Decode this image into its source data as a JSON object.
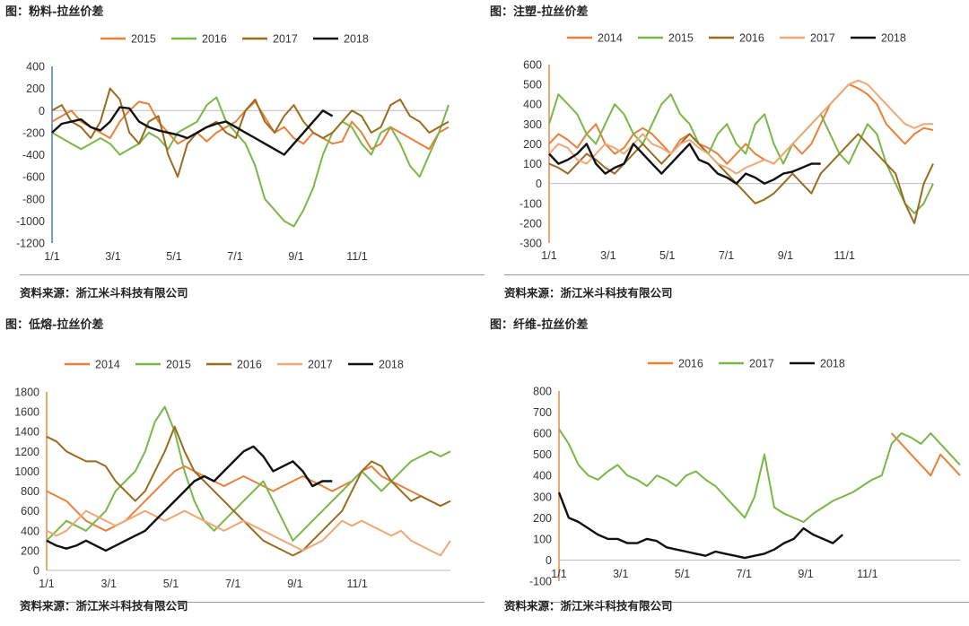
{
  "colors": {
    "2014": "#e8803a",
    "2015a": "#e8803a",
    "2015b": "#7ab648",
    "2016a": "#7ab648",
    "2016b": "#9a6b1e",
    "2016c": "#e8803a",
    "2017a": "#9a6b1e",
    "2017b": "#f0a877",
    "2017c": "#7ab648",
    "2018": "#111111"
  },
  "charts": [
    {
      "title": "图：粉料-拉丝价差",
      "source": "资料来源：浙江米斗科技有限公司",
      "chart_data": {
        "type": "line",
        "ylim": [
          -1200,
          400
        ],
        "yticks": [
          "400",
          "200",
          "0",
          "-200",
          "-400",
          "-600",
          "-800",
          "-1000",
          "-1200"
        ],
        "xticks": [
          "1/1",
          "3/1",
          "5/1",
          "7/1",
          "9/1",
          "11/1"
        ],
        "legend_position": "top",
        "series": [
          {
            "name": "2015",
            "color": "2015a",
            "values": [
              -100,
              -50,
              0,
              -100,
              -150,
              -200,
              -250,
              -100,
              0,
              80,
              60,
              -100,
              -200,
              -300,
              -250,
              -200,
              -280,
              -200,
              -150,
              -100,
              0,
              80,
              -60,
              -200,
              -150,
              -250,
              -300,
              -200,
              -250,
              -300,
              -280,
              -100,
              -200,
              -350,
              -300,
              -150,
              -200,
              -250,
              -300,
              -350,
              -200,
              -150
            ]
          },
          {
            "name": "2016",
            "color": "2016a",
            "values": [
              -200,
              -250,
              -300,
              -350,
              -300,
              -250,
              -300,
              -400,
              -350,
              -300,
              -200,
              -250,
              -350,
              -200,
              -150,
              -100,
              50,
              120,
              -100,
              -200,
              -300,
              -500,
              -800,
              -900,
              -1000,
              -1050,
              -900,
              -700,
              -400,
              -200,
              -100,
              -150,
              -300,
              -400,
              -200,
              -150,
              -300,
              -500,
              -600,
              -400,
              -200,
              50
            ]
          },
          {
            "name": "2017",
            "color": "2017a",
            "values": [
              0,
              50,
              -100,
              -150,
              -250,
              -100,
              200,
              100,
              -200,
              -300,
              -100,
              -50,
              -400,
              -600,
              -300,
              -200,
              -150,
              -100,
              -200,
              -250,
              0,
              100,
              -100,
              -200,
              -50,
              50,
              -100,
              -200,
              -250,
              -200,
              -100,
              0,
              -50,
              -200,
              -150,
              50,
              100,
              -50,
              -100,
              -200,
              -150,
              -100
            ]
          },
          {
            "name": "2018",
            "color": "2018",
            "values": [
              -200,
              -120,
              -100,
              -80,
              -150,
              -180,
              -100,
              30,
              20,
              -100,
              -150,
              -180,
              -200,
              -220,
              -250,
              -200,
              -150,
              -120,
              -100,
              -150,
              -200,
              -250,
              -300,
              -350,
              -400,
              -300,
              -200,
              -100,
              0,
              -50
            ]
          }
        ]
      }
    },
    {
      "title": "图：注塑-拉丝价差",
      "source": "资料来源：浙江米斗科技有限公司",
      "chart_data": {
        "type": "line",
        "ylim": [
          -300,
          600
        ],
        "yticks": [
          "600",
          "500",
          "400",
          "300",
          "200",
          "100",
          "0",
          "-100",
          "-200",
          "-300"
        ],
        "xticks": [
          "1/1",
          "3/1",
          "5/1",
          "7/1",
          "9/1",
          "11/1"
        ],
        "legend_position": "top",
        "series": [
          {
            "name": "2014",
            "color": "2014",
            "values": [
              200,
              250,
              220,
              180,
              250,
              300,
              200,
              150,
              180,
              250,
              280,
              250,
              200,
              150,
              220,
              250,
              200,
              180,
              150,
              100,
              150,
              200,
              150,
              120,
              100,
              150,
              200,
              150,
              200,
              300,
              400,
              450,
              500,
              480,
              450,
              400,
              300,
              250,
              200,
              250,
              280,
              270
            ]
          },
          {
            "name": "2015",
            "color": "2015b",
            "values": [
              300,
              450,
              400,
              350,
              250,
              200,
              300,
              400,
              350,
              250,
              200,
              300,
              400,
              450,
              350,
              300,
              200,
              150,
              250,
              300,
              200,
              150,
              300,
              350,
              200,
              100,
              200,
              250,
              300,
              350,
              250,
              150,
              100,
              200,
              300,
              250,
              100,
              0,
              -100,
              -150,
              -100,
              0
            ]
          },
          {
            "name": "2016",
            "color": "2016b",
            "values": [
              100,
              80,
              50,
              100,
              150,
              120,
              80,
              50,
              100,
              150,
              200,
              150,
              100,
              150,
              200,
              250,
              200,
              150,
              100,
              50,
              0,
              -50,
              -100,
              -80,
              -50,
              0,
              50,
              0,
              -50,
              50,
              100,
              150,
              200,
              250,
              200,
              150,
              100,
              50,
              -100,
              -200,
              0,
              100
            ]
          },
          {
            "name": "2017",
            "color": "2017b",
            "values": [
              150,
              200,
              180,
              120,
              100,
              150,
              200,
              180,
              150,
              200,
              250,
              200,
              180,
              150,
              200,
              220,
              180,
              150,
              100,
              80,
              50,
              80,
              100,
              120,
              100,
              150,
              200,
              250,
              300,
              350,
              400,
              450,
              500,
              520,
              500,
              450,
              400,
              350,
              300,
              280,
              300,
              300
            ]
          },
          {
            "name": "2018",
            "color": "2018",
            "values": [
              150,
              100,
              120,
              150,
              200,
              100,
              50,
              80,
              100,
              200,
              150,
              100,
              50,
              100,
              150,
              200,
              120,
              100,
              50,
              30,
              0,
              50,
              30,
              0,
              20,
              50,
              60,
              80,
              100,
              100
            ]
          }
        ]
      }
    },
    {
      "title": "图：低熔-拉丝价差",
      "source": "资料来源：浙江米斗科技有限公司",
      "chart_data": {
        "type": "line",
        "ylim": [
          0,
          1800
        ],
        "yticks": [
          "1800",
          "1600",
          "1400",
          "1200",
          "1000",
          "800",
          "600",
          "400",
          "200",
          "0"
        ],
        "xticks": [
          "1/1",
          "3/1",
          "5/1",
          "7/1",
          "9/1",
          "11/1"
        ],
        "legend_position": "top",
        "series": [
          {
            "name": "2014",
            "color": "2014",
            "values": [
              800,
              750,
              700,
              600,
              500,
              450,
              400,
              450,
              500,
              600,
              700,
              800,
              900,
              1000,
              1050,
              1000,
              950,
              900,
              850,
              900,
              950,
              900,
              850,
              800,
              850,
              900,
              950,
              900,
              850,
              800,
              850,
              900,
              1000,
              1050,
              950,
              900,
              850,
              800,
              750,
              700,
              650,
              700
            ]
          },
          {
            "name": "2015",
            "color": "2015b",
            "values": [
              300,
              400,
              500,
              450,
              400,
              500,
              600,
              800,
              900,
              1000,
              1200,
              1500,
              1650,
              1400,
              1000,
              700,
              500,
              400,
              500,
              600,
              700,
              800,
              900,
              700,
              500,
              300,
              400,
              500,
              600,
              700,
              800,
              900,
              1000,
              900,
              800,
              900,
              1000,
              1100,
              1150,
              1200,
              1150,
              1200
            ]
          },
          {
            "name": "2016",
            "color": "2016b",
            "values": [
              1350,
              1300,
              1200,
              1150,
              1100,
              1100,
              1050,
              900,
              800,
              700,
              800,
              1000,
              1200,
              1450,
              1200,
              1000,
              900,
              800,
              700,
              600,
              500,
              400,
              300,
              250,
              200,
              150,
              200,
              300,
              400,
              500,
              600,
              800,
              1000,
              1100,
              1050,
              900,
              800,
              700,
              750,
              700,
              650,
              700
            ]
          },
          {
            "name": "2017",
            "color": "2017b",
            "values": [
              400,
              350,
              400,
              500,
              600,
              550,
              500,
              450,
              500,
              550,
              600,
              550,
              500,
              550,
              600,
              550,
              500,
              450,
              400,
              450,
              500,
              450,
              400,
              350,
              300,
              250,
              200,
              250,
              300,
              400,
              500,
              450,
              500,
              450,
              400,
              350,
              400,
              300,
              250,
              200,
              150,
              300
            ]
          },
          {
            "name": "2018",
            "color": "2018",
            "values": [
              300,
              250,
              220,
              250,
              300,
              250,
              200,
              250,
              300,
              350,
              400,
              500,
              600,
              700,
              800,
              900,
              950,
              900,
              1000,
              1100,
              1200,
              1250,
              1150,
              1000,
              1050,
              1100,
              1000,
              850,
              900,
              900
            ]
          }
        ]
      }
    },
    {
      "title": "图：纤维-拉丝价差",
      "source": "资料来源：浙江米斗科技有限公司",
      "chart_data": {
        "type": "line",
        "ylim": [
          -100,
          800
        ],
        "yticks": [
          "800",
          "700",
          "600",
          "500",
          "400",
          "300",
          "200",
          "100",
          "0",
          "-100"
        ],
        "xticks": [
          "1/1",
          "3/1",
          "5/1",
          "7/1",
          "9/1",
          "11/1"
        ],
        "legend_position": "top",
        "series": [
          {
            "name": "2016",
            "color": "2016c",
            "values": [
              null,
              null,
              null,
              null,
              null,
              null,
              null,
              null,
              null,
              null,
              null,
              null,
              null,
              null,
              null,
              null,
              null,
              null,
              null,
              null,
              null,
              null,
              null,
              null,
              null,
              null,
              null,
              null,
              null,
              null,
              null,
              null,
              null,
              null,
              600,
              550,
              500,
              450,
              400,
              500,
              450,
              400
            ]
          },
          {
            "name": "2017",
            "color": "2017c",
            "values": [
              620,
              550,
              450,
              400,
              380,
              420,
              450,
              400,
              380,
              350,
              400,
              380,
              350,
              400,
              420,
              380,
              350,
              300,
              250,
              200,
              300,
              500,
              250,
              220,
              200,
              180,
              220,
              250,
              280,
              300,
              320,
              350,
              380,
              400,
              550,
              600,
              580,
              550,
              600,
              550,
              500,
              450
            ]
          },
          {
            "name": "2018",
            "color": "2018",
            "values": [
              320,
              200,
              180,
              150,
              120,
              100,
              100,
              80,
              80,
              100,
              90,
              60,
              50,
              40,
              30,
              20,
              40,
              30,
              20,
              10,
              20,
              30,
              50,
              80,
              100,
              150,
              120,
              100,
              80,
              120
            ]
          }
        ]
      }
    }
  ]
}
